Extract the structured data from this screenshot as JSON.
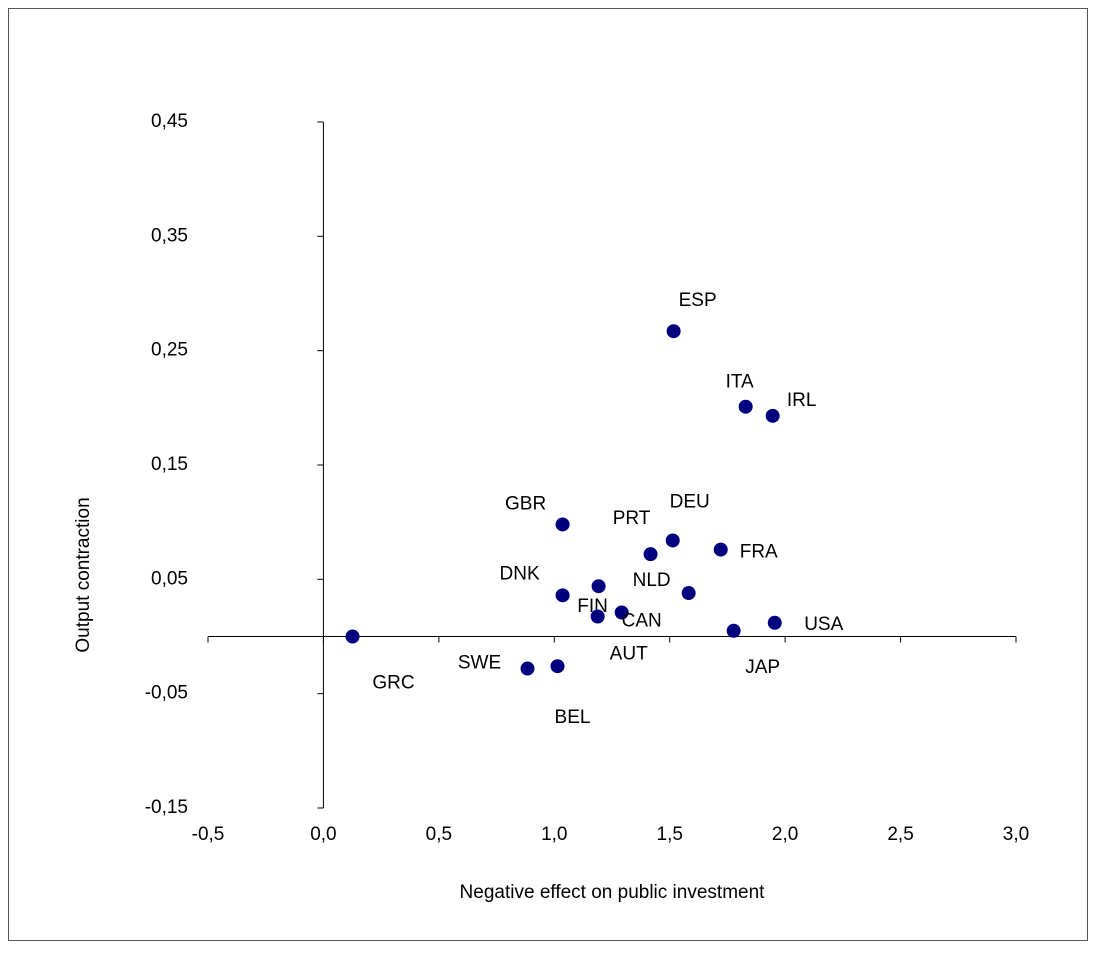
{
  "chart_data": {
    "type": "scatter",
    "xlabel": "Negative effect on public investment",
    "ylabel": "Output contraction",
    "color": "#00007f",
    "labels": [
      "GRC",
      "SWE",
      "BEL",
      "DNK",
      "GBR",
      "FIN",
      "CAN",
      "AUT",
      "PRT",
      "DEU",
      "NLD",
      "FRA",
      "JAP",
      "USA",
      "ESP",
      "ITA",
      "IRL"
    ],
    "x": [
      0.126,
      0.884,
      1.014,
      1.036,
      1.036,
      1.192,
      1.292,
      1.188,
      1.417,
      1.513,
      1.582,
      1.721,
      1.777,
      1.955,
      1.517,
      1.829,
      1.946
    ],
    "values": [
      0.0,
      -0.028,
      -0.026,
      0.036,
      0.098,
      0.044,
      0.021,
      0.0175,
      0.072,
      0.084,
      0.038,
      0.076,
      0.005,
      0.012,
      0.267,
      0.201,
      0.193
    ],
    "xlim": [
      -0.5,
      3.0
    ],
    "xticks": [
      {
        "value": -0.5,
        "label": "-0,5"
      },
      {
        "value": 0,
        "label": "0,0"
      },
      {
        "value": 0.5,
        "label": "0,5"
      },
      {
        "value": 1.0,
        "label": "1,0"
      },
      {
        "value": 1.5,
        "label": "1,5"
      },
      {
        "value": 2.0,
        "label": "2,0"
      },
      {
        "value": 2.5,
        "label": "2,5"
      },
      {
        "value": 3.0,
        "label": "3,0"
      }
    ],
    "ylim": [
      -0.15,
      0.45
    ],
    "yticks": [
      {
        "value": -0.15,
        "label": "-0,15"
      },
      {
        "value": -0.05,
        "label": "-0,05"
      },
      {
        "value": 0.05,
        "label": "0,05"
      },
      {
        "value": 0.15,
        "label": "0,15"
      },
      {
        "value": 0.25,
        "label": "0,25"
      },
      {
        "value": 0.35,
        "label": "0,35"
      },
      {
        "value": 0.45,
        "label": "0,45"
      }
    ]
  }
}
